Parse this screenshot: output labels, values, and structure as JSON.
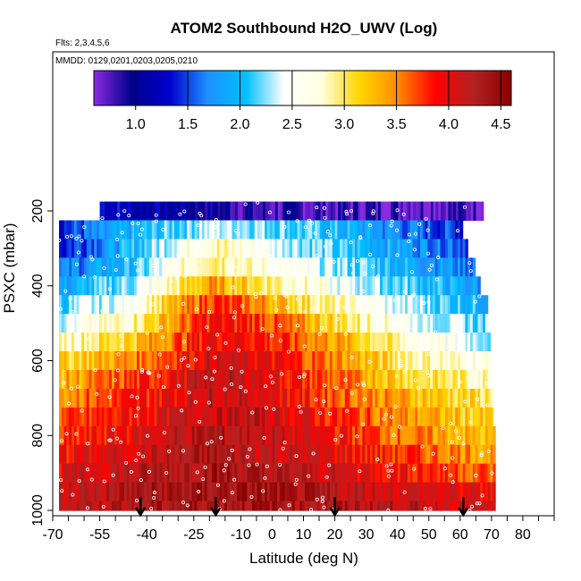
{
  "chart_data": {
    "type": "heatmap",
    "title": "ATOM2 Southbound H2O_UWV (Log)",
    "subtitle_flights": "Flts: 2,3,4,5,6",
    "subtitle_dates": "MMDD: 0129,0201,0203,0205,0210",
    "xlabel": "Latitude (deg N)",
    "ylabel": "PSXC (mbar)",
    "xlim": [
      -70,
      90
    ],
    "ylim": [
      1000,
      50
    ],
    "x_ticks": [
      -70,
      -55,
      -40,
      -25,
      -10,
      0,
      10,
      20,
      30,
      40,
      50,
      60,
      70,
      80
    ],
    "x_minor_ticks": [
      -65,
      -60,
      -50,
      -45,
      -35,
      -30,
      -20,
      -15,
      -5,
      5,
      15,
      25,
      35,
      45,
      55,
      65,
      75,
      85,
      90
    ],
    "y_ticks": [
      200,
      400,
      600,
      800,
      1000
    ],
    "colorbar": {
      "range": [
        0.6,
        4.6
      ],
      "ticks": [
        1.0,
        1.5,
        2.0,
        2.5,
        3.0,
        3.5,
        4.0,
        4.5
      ],
      "tick_labels": [
        "1.0",
        "1.5",
        "2.0",
        "2.5",
        "3.0",
        "3.5",
        "4.0",
        "4.5"
      ]
    },
    "colors": [
      "#8a2be2",
      "#00008b",
      "#0000cd",
      "#1e90ff",
      "#00bfff",
      "#ffffff",
      "#ffffe0",
      "#ffd700",
      "#ff8c00",
      "#ff0000",
      "#b22222",
      "#8b0000"
    ],
    "arrows_latitude": [
      -42,
      -18,
      20,
      61
    ],
    "pressure_bins": [
      {
        "p": [
          175,
          225
        ],
        "lat": [
          -55,
          67
        ],
        "values": [
          1.6,
          1.2,
          1.0,
          0.8
        ]
      },
      {
        "p": [
          225,
          275
        ],
        "lat": [
          -68,
          60
        ],
        "values": [
          1.4,
          1.9,
          2.4,
          2.3,
          2.0,
          1.6,
          1.3
        ]
      },
      {
        "p": [
          275,
          325
        ],
        "lat": [
          -68,
          62
        ],
        "values": [
          1.4,
          2.0,
          2.9,
          2.6,
          2.1,
          1.8,
          1.5
        ]
      },
      {
        "p": [
          325,
          375
        ],
        "lat": [
          -68,
          64
        ],
        "values": [
          1.6,
          2.0,
          3.1,
          2.7,
          2.3,
          1.9,
          1.6
        ]
      },
      {
        "p": [
          375,
          425
        ],
        "lat": [
          -68,
          66
        ],
        "values": [
          1.8,
          2.3,
          3.4,
          3.1,
          2.5,
          2.1,
          1.7
        ]
      },
      {
        "p": [
          425,
          475
        ],
        "lat": [
          -68,
          68
        ],
        "values": [
          2.1,
          2.6,
          3.8,
          3.5,
          2.8,
          2.3,
          1.9
        ]
      },
      {
        "p": [
          475,
          525
        ],
        "lat": [
          -68,
          68
        ],
        "values": [
          2.4,
          2.9,
          3.9,
          3.8,
          3.1,
          2.5,
          2.1
        ]
      },
      {
        "p": [
          525,
          575
        ],
        "lat": [
          -68,
          69
        ],
        "values": [
          2.8,
          3.2,
          4.0,
          3.9,
          3.4,
          2.7,
          2.3
        ]
      },
      {
        "p": [
          575,
          625
        ],
        "lat": [
          -68,
          69
        ],
        "values": [
          3.1,
          3.5,
          4.1,
          4.0,
          3.5,
          2.9,
          2.6
        ]
      },
      {
        "p": [
          625,
          675
        ],
        "lat": [
          -68,
          70
        ],
        "values": [
          3.3,
          3.7,
          4.2,
          4.1,
          3.6,
          3.1,
          2.8
        ]
      },
      {
        "p": [
          675,
          725
        ],
        "lat": [
          -68,
          70
        ],
        "values": [
          3.5,
          3.8,
          4.2,
          4.1,
          3.7,
          3.3,
          3.0
        ]
      },
      {
        "p": [
          725,
          775
        ],
        "lat": [
          -68,
          70
        ],
        "values": [
          3.6,
          3.9,
          4.2,
          4.2,
          3.8,
          3.4,
          3.1
        ]
      },
      {
        "p": [
          775,
          825
        ],
        "lat": [
          -68,
          71
        ],
        "values": [
          3.7,
          4.0,
          4.3,
          4.2,
          3.9,
          3.5,
          3.2
        ]
      },
      {
        "p": [
          825,
          875
        ],
        "lat": [
          -68,
          71
        ],
        "values": [
          3.9,
          4.1,
          4.3,
          4.2,
          4.0,
          3.7,
          3.4
        ]
      },
      {
        "p": [
          875,
          925
        ],
        "lat": [
          -68,
          71
        ],
        "values": [
          4.0,
          4.2,
          4.4,
          4.3,
          4.1,
          3.9,
          3.6
        ]
      },
      {
        "p": [
          925,
          975
        ],
        "lat": [
          -68,
          71
        ],
        "values": [
          4.1,
          4.3,
          4.4,
          4.4,
          4.2,
          4.1,
          3.9
        ]
      },
      {
        "p": [
          975,
          1000
        ],
        "lat": [
          -68,
          71
        ],
        "values": [
          4.2,
          4.3,
          4.4,
          4.4,
          4.3,
          4.2,
          4.0
        ]
      }
    ]
  }
}
